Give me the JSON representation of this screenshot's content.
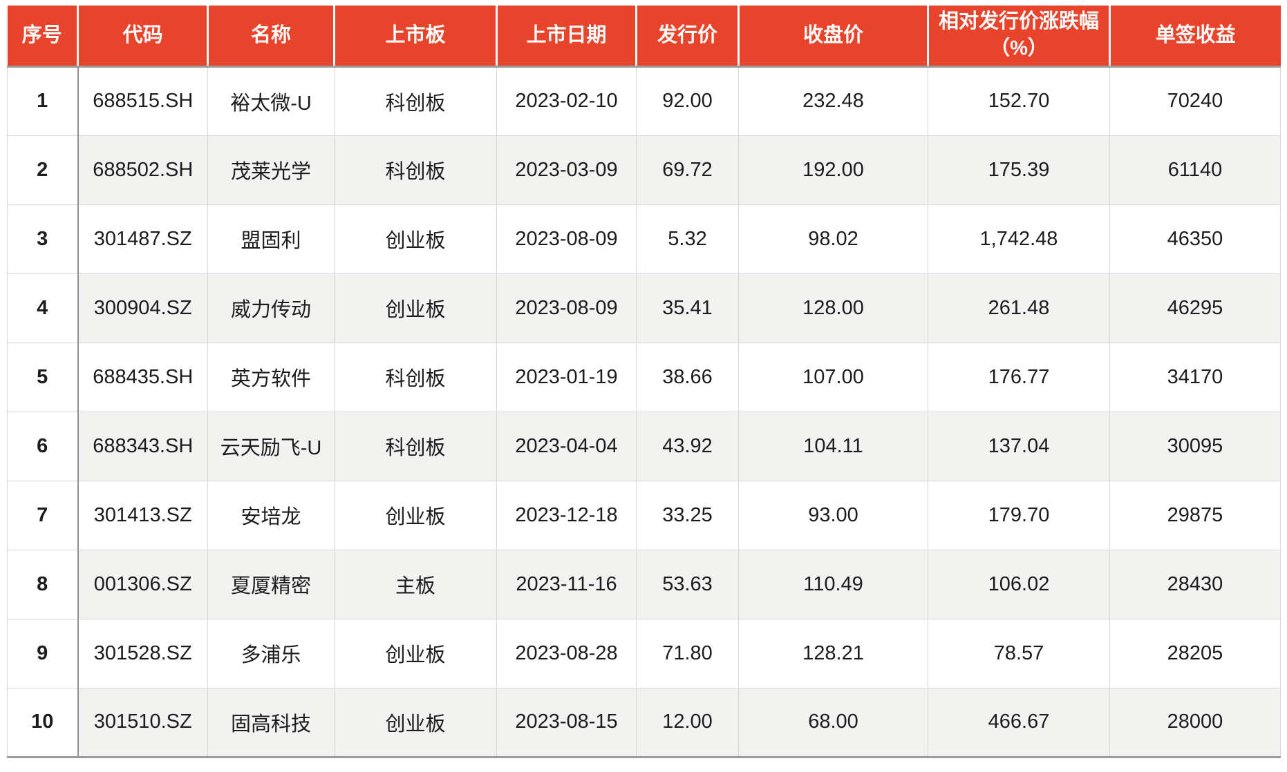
{
  "chart_data": {
    "type": "table",
    "columns": [
      "序号",
      "代码",
      "名称",
      "上市板",
      "上市日期",
      "发行价",
      "收盘价",
      "相对发行价涨跌幅\n（%）",
      "单签收益"
    ],
    "rows": [
      [
        "1",
        "688515.SH",
        "裕太微-U",
        "科创板",
        "2023-02-10",
        "92.00",
        "232.48",
        "152.70",
        "70240"
      ],
      [
        "2",
        "688502.SH",
        "茂莱光学",
        "科创板",
        "2023-03-09",
        "69.72",
        "192.00",
        "175.39",
        "61140"
      ],
      [
        "3",
        "301487.SZ",
        "盟固利",
        "创业板",
        "2023-08-09",
        "5.32",
        "98.02",
        "1,742.48",
        "46350"
      ],
      [
        "4",
        "300904.SZ",
        "威力传动",
        "创业板",
        "2023-08-09",
        "35.41",
        "128.00",
        "261.48",
        "46295"
      ],
      [
        "5",
        "688435.SH",
        "英方软件",
        "科创板",
        "2023-01-19",
        "38.66",
        "107.00",
        "176.77",
        "34170"
      ],
      [
        "6",
        "688343.SH",
        "云天励飞-U",
        "科创板",
        "2023-04-04",
        "43.92",
        "104.11",
        "137.04",
        "30095"
      ],
      [
        "7",
        "301413.SZ",
        "安培龙",
        "创业板",
        "2023-12-18",
        "33.25",
        "93.00",
        "179.70",
        "29875"
      ],
      [
        "8",
        "001306.SZ",
        "夏厦精密",
        "主板",
        "2023-11-16",
        "53.63",
        "110.49",
        "106.02",
        "28430"
      ],
      [
        "9",
        "301528.SZ",
        "多浦乐",
        "创业板",
        "2023-08-28",
        "71.80",
        "128.21",
        "78.57",
        "28205"
      ],
      [
        "10",
        "301510.SZ",
        "固高科技",
        "创业板",
        "2023-08-15",
        "12.00",
        "68.00",
        "466.67",
        "28000"
      ]
    ],
    "colors": {
      "header_bg": "#e8432b",
      "header_text": "#ffffff",
      "stripe_bg": "#f2f2f0",
      "cell_text": "#1c1c1c",
      "rule_dark": "#9b9b9b",
      "rule_light": "#d8d8d6"
    },
    "layout_hints": {
      "zebra_striping": "even rows shaded, first column always white",
      "first_column_divider": "dark vertical rule after 序号 column",
      "alignment": "all cells centered"
    }
  }
}
